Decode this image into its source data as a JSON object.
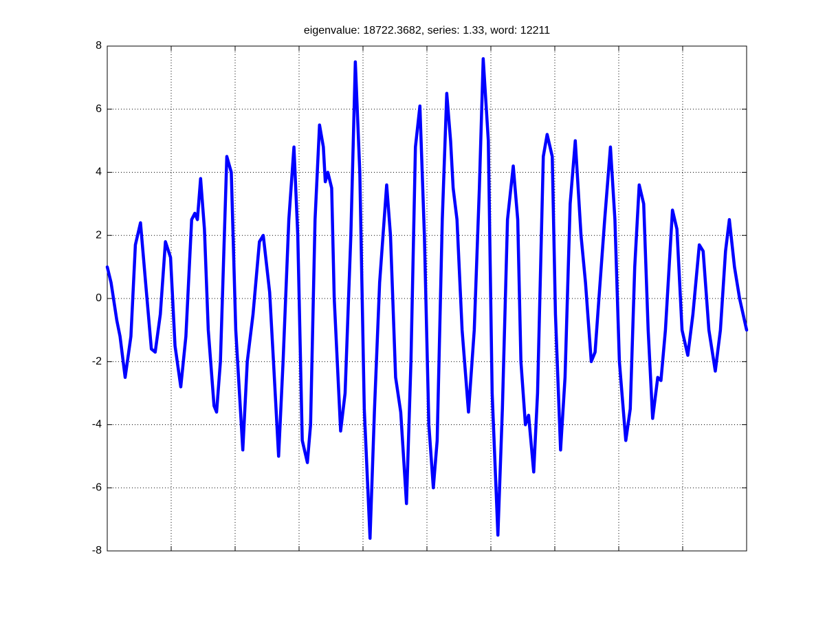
{
  "chart_data": {
    "type": "line",
    "title": "eigenvalue: 18722.3682, series: 1.33, word: 12211",
    "xlim": [
      0,
      10
    ],
    "xticks": [
      1,
      2,
      3,
      4,
      5,
      6,
      7,
      8,
      9
    ],
    "xtick_labels": false,
    "ylim": [
      -8,
      8
    ],
    "yticks": [
      -8,
      -6,
      -4,
      -2,
      0,
      2,
      4,
      6,
      8
    ],
    "grid": true,
    "x": [
      0,
      0.06,
      0.15,
      0.2,
      0.28,
      0.37,
      0.44,
      0.52,
      0.6,
      0.69,
      0.75,
      0.83,
      0.91,
      0.99,
      1.06,
      1.15,
      1.23,
      1.32,
      1.37,
      1.41,
      1.46,
      1.52,
      1.58,
      1.67,
      1.71,
      1.77,
      1.87,
      1.94,
      2.01,
      2.12,
      2.19,
      2.28,
      2.38,
      2.44,
      2.54,
      2.6,
      2.68,
      2.75,
      2.84,
      2.92,
      2.98,
      3.05,
      3.13,
      3.18,
      3.25,
      3.32,
      3.38,
      3.41,
      3.45,
      3.51,
      3.55,
      3.65,
      3.72,
      3.81,
      3.88,
      3.95,
      4.02,
      4.11,
      4.18,
      4.26,
      4.37,
      4.43,
      4.51,
      4.59,
      4.68,
      4.75,
      4.82,
      4.89,
      4.96,
      5.03,
      5.1,
      5.16,
      5.24,
      5.31,
      5.37,
      5.41,
      5.47,
      5.55,
      5.65,
      5.74,
      5.82,
      5.88,
      5.96,
      6.02,
      6.11,
      6.18,
      6.26,
      6.35,
      6.42,
      6.47,
      6.54,
      6.59,
      6.67,
      6.73,
      6.82,
      6.88,
      6.96,
      7.01,
      7.09,
      7.16,
      7.24,
      7.32,
      7.41,
      7.48,
      7.57,
      7.63,
      7.69,
      7.78,
      7.87,
      7.94,
      8.01,
      8.11,
      8.18,
      8.25,
      8.32,
      8.39,
      8.46,
      8.53,
      8.61,
      8.66,
      8.73,
      8.84,
      8.91,
      8.99,
      9.08,
      9.16,
      9.26,
      9.32,
      9.41,
      9.51,
      9.59,
      9.67,
      9.73,
      9.81,
      9.89,
      10
    ],
    "series": [
      {
        "color": "#0000ff",
        "values": [
          1.0,
          0.5,
          -0.7,
          -1.2,
          -2.5,
          -1.2,
          1.7,
          2.4,
          0.5,
          -1.6,
          -1.7,
          -0.5,
          1.8,
          1.3,
          -1.5,
          -2.8,
          -1.2,
          2.5,
          2.7,
          2.5,
          3.8,
          2.2,
          -1.0,
          -3.4,
          -3.6,
          -2.0,
          4.5,
          4.0,
          -1.0,
          -4.8,
          -2.0,
          -0.5,
          1.8,
          2.0,
          0.2,
          -2.0,
          -5.0,
          -2.0,
          2.5,
          4.8,
          2.0,
          -4.5,
          -5.2,
          -4.0,
          2.5,
          5.5,
          4.8,
          3.7,
          4.0,
          3.5,
          0,
          -4.2,
          -3.0,
          2.0,
          7.5,
          4.0,
          -3.5,
          -7.6,
          -3.5,
          0.5,
          3.6,
          2.0,
          -2.5,
          -3.6,
          -6.5,
          -2.0,
          4.8,
          6.1,
          2.0,
          -4.0,
          -6.0,
          -4.5,
          2.5,
          6.5,
          5.0,
          3.5,
          2.5,
          -1.0,
          -3.6,
          -1.0,
          3.5,
          7.6,
          5.0,
          -3.0,
          -7.5,
          -3.5,
          2.5,
          4.2,
          2.5,
          -2.0,
          -4.0,
          -3.7,
          -5.5,
          -3.0,
          4.5,
          5.2,
          4.5,
          -0.5,
          -4.8,
          -2.5,
          3.0,
          5.0,
          2.0,
          0.5,
          -2.0,
          -1.7,
          0,
          2.5,
          4.8,
          2.5,
          -2.0,
          -4.5,
          -3.5,
          1.0,
          3.6,
          3.0,
          -1.0,
          -3.8,
          -2.5,
          -2.6,
          -1.0,
          2.8,
          2.2,
          -1.0,
          -1.8,
          -0.5,
          1.7,
          1.5,
          -1.0,
          -2.3,
          -1.0,
          1.5,
          2.5,
          1.0,
          0,
          -1.0
        ]
      }
    ]
  }
}
